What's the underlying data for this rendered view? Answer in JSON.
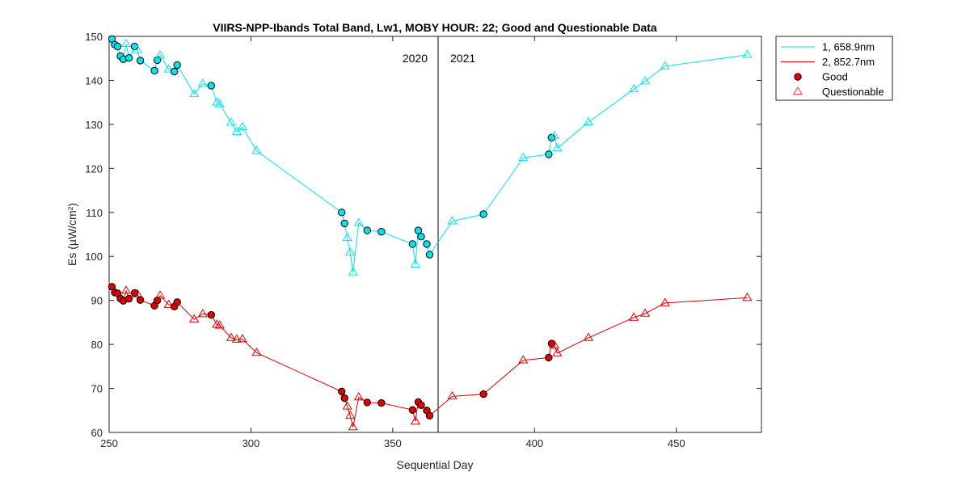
{
  "chart_data": {
    "type": "line",
    "title": "VIIRS-NPP-Ibands Total Band,  Lw1, MOBY HOUR: 22;  Good and Questionable Data",
    "xlabel": "Sequential Day",
    "ylabel": "Es (µW/cm²)",
    "xlim": [
      250,
      480
    ],
    "ylim": [
      60,
      150
    ],
    "xticks": [
      250,
      300,
      350,
      400,
      450
    ],
    "yticks": [
      60,
      70,
      80,
      90,
      100,
      110,
      120,
      130,
      140,
      150
    ],
    "grid": false,
    "legend_position": "outside-top-right",
    "year_divider": {
      "x": 366,
      "left_label": "2020",
      "right_label": "2021"
    },
    "legend": [
      {
        "label": "1, 658.9nm",
        "kind": "line",
        "color": "#00e5ee"
      },
      {
        "label": "2, 852.7nm",
        "kind": "line",
        "color": "#e00000"
      },
      {
        "label": "Good",
        "kind": "good-marker",
        "color": "#e00000"
      },
      {
        "label": "Questionable",
        "kind": "questionable-marker",
        "color": "#ff3333"
      }
    ],
    "series": [
      {
        "name": "1, 658.9nm",
        "color": "#00e5ee",
        "marker_color": "#00e5ee",
        "points": [
          {
            "x": 251,
            "y": 149.4,
            "q": "good"
          },
          {
            "x": 252,
            "y": 148.1,
            "q": "good"
          },
          {
            "x": 253,
            "y": 147.7,
            "q": "good"
          },
          {
            "x": 254,
            "y": 145.5,
            "q": "good"
          },
          {
            "x": 255,
            "y": 144.8,
            "q": "good"
          },
          {
            "x": 256,
            "y": 148.3,
            "q": "questionable"
          },
          {
            "x": 257,
            "y": 145.1,
            "q": "good"
          },
          {
            "x": 259,
            "y": 147.7,
            "q": "good"
          },
          {
            "x": 260,
            "y": 146.9,
            "q": "questionable"
          },
          {
            "x": 261,
            "y": 144.5,
            "q": "good"
          },
          {
            "x": 266,
            "y": 142.2,
            "q": "good"
          },
          {
            "x": 267,
            "y": 144.6,
            "q": "good"
          },
          {
            "x": 268,
            "y": 145.7,
            "q": "questionable"
          },
          {
            "x": 271,
            "y": 142.5,
            "q": "questionable"
          },
          {
            "x": 273,
            "y": 142.0,
            "q": "good"
          },
          {
            "x": 274,
            "y": 143.5,
            "q": "good"
          },
          {
            "x": 280,
            "y": 136.9,
            "q": "questionable"
          },
          {
            "x": 283,
            "y": 139.2,
            "q": "questionable"
          },
          {
            "x": 286,
            "y": 138.8,
            "q": "good"
          },
          {
            "x": 288,
            "y": 135.0,
            "q": "questionable"
          },
          {
            "x": 289,
            "y": 134.6,
            "q": "questionable"
          },
          {
            "x": 293,
            "y": 130.4,
            "q": "questionable"
          },
          {
            "x": 295,
            "y": 128.3,
            "q": "questionable"
          },
          {
            "x": 297,
            "y": 129.4,
            "q": "questionable"
          },
          {
            "x": 302,
            "y": 124.0,
            "q": "questionable"
          },
          {
            "x": 332,
            "y": 110.0,
            "q": "good"
          },
          {
            "x": 333,
            "y": 107.5,
            "q": "good"
          },
          {
            "x": 334,
            "y": 104.2,
            "q": "questionable"
          },
          {
            "x": 335,
            "y": 100.9,
            "q": "questionable"
          },
          {
            "x": 336,
            "y": 96.4,
            "q": "questionable"
          },
          {
            "x": 338,
            "y": 107.6,
            "q": "questionable"
          },
          {
            "x": 341,
            "y": 105.9,
            "q": "good"
          },
          {
            "x": 346,
            "y": 105.6,
            "q": "good"
          },
          {
            "x": 357,
            "y": 102.8,
            "q": "good"
          },
          {
            "x": 358,
            "y": 98.2,
            "q": "questionable"
          },
          {
            "x": 359,
            "y": 105.9,
            "q": "good"
          },
          {
            "x": 360,
            "y": 104.5,
            "q": "good"
          },
          {
            "x": 362,
            "y": 102.8,
            "q": "good"
          },
          {
            "x": 363,
            "y": 100.4,
            "q": "good"
          },
          {
            "x": 371,
            "y": 108.0,
            "q": "questionable"
          },
          {
            "x": 382,
            "y": 109.6,
            "q": "good"
          },
          {
            "x": 396,
            "y": 122.4,
            "q": "questionable"
          },
          {
            "x": 405,
            "y": 123.2,
            "q": "good"
          },
          {
            "x": 406,
            "y": 127.0,
            "q": "good"
          },
          {
            "x": 407,
            "y": 127.4,
            "q": "questionable"
          },
          {
            "x": 408,
            "y": 124.6,
            "q": "questionable"
          },
          {
            "x": 419,
            "y": 130.5,
            "q": "questionable"
          },
          {
            "x": 435,
            "y": 138.0,
            "q": "questionable"
          },
          {
            "x": 439,
            "y": 139.8,
            "q": "questionable"
          },
          {
            "x": 446,
            "y": 143.2,
            "q": "questionable"
          },
          {
            "x": 475,
            "y": 145.8,
            "q": "questionable"
          }
        ]
      },
      {
        "name": "2, 852.7nm",
        "color": "#e00000",
        "marker_color": "#e00000",
        "points": [
          {
            "x": 251,
            "y": 93.1,
            "q": "good"
          },
          {
            "x": 252,
            "y": 91.8,
            "q": "good"
          },
          {
            "x": 253,
            "y": 91.6,
            "q": "good"
          },
          {
            "x": 254,
            "y": 90.4,
            "q": "good"
          },
          {
            "x": 255,
            "y": 89.9,
            "q": "good"
          },
          {
            "x": 256,
            "y": 92.2,
            "q": "questionable"
          },
          {
            "x": 257,
            "y": 90.4,
            "q": "good"
          },
          {
            "x": 259,
            "y": 91.7,
            "q": "good"
          },
          {
            "x": 260,
            "y": 91.4,
            "q": "questionable"
          },
          {
            "x": 261,
            "y": 90.1,
            "q": "good"
          },
          {
            "x": 266,
            "y": 88.8,
            "q": "good"
          },
          {
            "x": 267,
            "y": 90.0,
            "q": "good"
          },
          {
            "x": 268,
            "y": 91.1,
            "q": "questionable"
          },
          {
            "x": 271,
            "y": 89.0,
            "q": "questionable"
          },
          {
            "x": 273,
            "y": 88.6,
            "q": "good"
          },
          {
            "x": 274,
            "y": 89.6,
            "q": "good"
          },
          {
            "x": 280,
            "y": 85.7,
            "q": "questionable"
          },
          {
            "x": 283,
            "y": 86.9,
            "q": "questionable"
          },
          {
            "x": 286,
            "y": 86.7,
            "q": "good"
          },
          {
            "x": 288,
            "y": 84.5,
            "q": "questionable"
          },
          {
            "x": 289,
            "y": 84.3,
            "q": "questionable"
          },
          {
            "x": 293,
            "y": 81.5,
            "q": "questionable"
          },
          {
            "x": 295,
            "y": 81.1,
            "q": "questionable"
          },
          {
            "x": 297,
            "y": 81.2,
            "q": "questionable"
          },
          {
            "x": 302,
            "y": 78.1,
            "q": "questionable"
          },
          {
            "x": 332,
            "y": 69.3,
            "q": "good"
          },
          {
            "x": 333,
            "y": 67.8,
            "q": "good"
          },
          {
            "x": 334,
            "y": 65.9,
            "q": "questionable"
          },
          {
            "x": 335,
            "y": 63.8,
            "q": "questionable"
          },
          {
            "x": 336,
            "y": 61.2,
            "q": "questionable"
          },
          {
            "x": 338,
            "y": 68.0,
            "q": "questionable"
          },
          {
            "x": 341,
            "y": 66.8,
            "q": "good"
          },
          {
            "x": 346,
            "y": 66.7,
            "q": "good"
          },
          {
            "x": 357,
            "y": 65.1,
            "q": "good"
          },
          {
            "x": 358,
            "y": 62.5,
            "q": "questionable"
          },
          {
            "x": 359,
            "y": 66.9,
            "q": "good"
          },
          {
            "x": 360,
            "y": 66.2,
            "q": "good"
          },
          {
            "x": 362,
            "y": 65.0,
            "q": "good"
          },
          {
            "x": 363,
            "y": 63.8,
            "q": "good"
          },
          {
            "x": 371,
            "y": 68.2,
            "q": "questionable"
          },
          {
            "x": 382,
            "y": 68.7,
            "q": "good"
          },
          {
            "x": 396,
            "y": 76.4,
            "q": "questionable"
          },
          {
            "x": 405,
            "y": 77.0,
            "q": "good"
          },
          {
            "x": 406,
            "y": 80.2,
            "q": "good"
          },
          {
            "x": 407,
            "y": 79.8,
            "q": "questionable"
          },
          {
            "x": 408,
            "y": 78.0,
            "q": "questionable"
          },
          {
            "x": 419,
            "y": 81.5,
            "q": "questionable"
          },
          {
            "x": 435,
            "y": 86.1,
            "q": "questionable"
          },
          {
            "x": 439,
            "y": 87.0,
            "q": "questionable"
          },
          {
            "x": 446,
            "y": 89.4,
            "q": "questionable"
          },
          {
            "x": 475,
            "y": 90.6,
            "q": "questionable"
          }
        ]
      }
    ]
  }
}
